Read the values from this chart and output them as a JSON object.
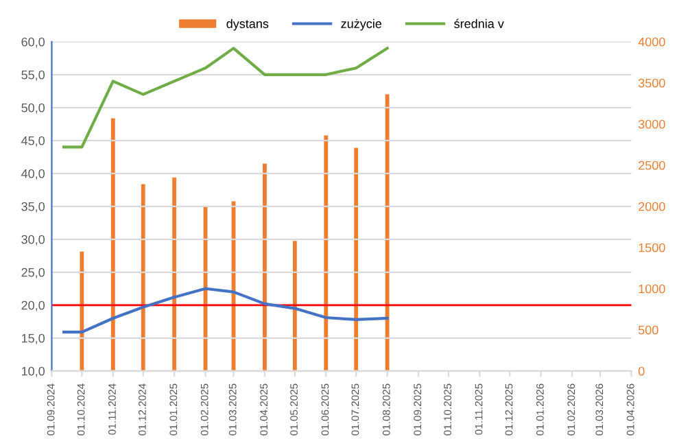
{
  "chart_data": {
    "type": "line",
    "xlim": [
      "2024-09-01",
      "2026-04-01"
    ],
    "xticks": [
      {
        "value": "2024-09-01",
        "label": "01.09.2024"
      },
      {
        "value": "2024-10-01",
        "label": "01.10.2024"
      },
      {
        "value": "2024-11-01",
        "label": "01.11.2024"
      },
      {
        "value": "2024-12-01",
        "label": "01.12.2024"
      },
      {
        "value": "2025-01-01",
        "label": "01.01.2025"
      },
      {
        "value": "2025-02-01",
        "label": "01.02.2025"
      },
      {
        "value": "2025-03-01",
        "label": "01.03.2025"
      },
      {
        "value": "2025-04-01",
        "label": "01.04.2025"
      },
      {
        "value": "2025-05-01",
        "label": "01.05.2025"
      },
      {
        "value": "2025-06-01",
        "label": "01.06.2025"
      },
      {
        "value": "2025-07-01",
        "label": "01.07.2025"
      },
      {
        "value": "2025-08-01",
        "label": "01.08.2025"
      },
      {
        "value": "2025-09-01",
        "label": "01.09.2025"
      },
      {
        "value": "2025-10-01",
        "label": "01.10.2025"
      },
      {
        "value": "2025-11-01",
        "label": "01.11.2025"
      },
      {
        "value": "2025-12-01",
        "label": "01.12.2025"
      },
      {
        "value": "2026-01-01",
        "label": "01.01.2026"
      },
      {
        "value": "2026-02-01",
        "label": "01.02.2026"
      },
      {
        "value": "2026-03-01",
        "label": "01.03.2026"
      },
      {
        "value": "2026-04-01",
        "label": "01.04.2026"
      }
    ],
    "ylim": [
      10,
      60
    ],
    "yticks": [
      {
        "value": 10,
        "label": "10,0"
      },
      {
        "value": 15,
        "label": "15,0"
      },
      {
        "value": 20,
        "label": "20,0"
      },
      {
        "value": 25,
        "label": "25,0"
      },
      {
        "value": 30,
        "label": "30,0"
      },
      {
        "value": 35,
        "label": "35,0"
      },
      {
        "value": 40,
        "label": "40,0"
      },
      {
        "value": 45,
        "label": "45,0"
      },
      {
        "value": 50,
        "label": "50,0"
      },
      {
        "value": 55,
        "label": "55,0"
      },
      {
        "value": 60,
        "label": "60,0"
      }
    ],
    "y2lim": [
      0,
      4000
    ],
    "y2ticks": [
      0,
      500,
      1000,
      1500,
      2000,
      2500,
      3000,
      3500,
      4000
    ],
    "grid": "y",
    "legend": "top",
    "marker": "none",
    "series": [
      {
        "name": "dystans",
        "type": "bar",
        "axis": "y2",
        "color": "#ed7d31",
        "x": [
          "2024-10-01",
          "2024-11-01",
          "2024-12-01",
          "2025-01-01",
          "2025-02-01",
          "2025-03-01",
          "2025-04-01",
          "2025-05-01",
          "2025-06-01",
          "2025-07-01",
          "2025-08-01"
        ],
        "values": [
          1450,
          3070,
          2270,
          2350,
          1990,
          2060,
          2520,
          1580,
          2860,
          2710,
          3360
        ]
      },
      {
        "name": "zużycie",
        "color": "#4472c4",
        "x": [
          "2024-09-13",
          "2024-10-01",
          "2024-11-01",
          "2024-12-01",
          "2025-01-01",
          "2025-02-01",
          "2025-03-01",
          "2025-04-01",
          "2025-05-01",
          "2025-06-01",
          "2025-07-01",
          "2025-08-01"
        ],
        "values": [
          15.9,
          15.9,
          18.0,
          19.7,
          21.2,
          22.5,
          22.0,
          20.2,
          19.5,
          18.1,
          17.8,
          18.0
        ]
      },
      {
        "name": "średnia v",
        "color": "#70ad47",
        "x": [
          "2024-09-13",
          "2024-10-01",
          "2024-11-01",
          "2024-12-01",
          "2025-01-01",
          "2025-02-01",
          "2025-03-01",
          "2025-04-01",
          "2025-05-01",
          "2025-06-01",
          "2025-07-01",
          "2025-08-01"
        ],
        "values": [
          44,
          44,
          54,
          52,
          54,
          56,
          59,
          55,
          55,
          55,
          56,
          59
        ]
      }
    ],
    "ref_lines": [
      {
        "axis": "y",
        "value": 20,
        "color": "#ff0000"
      }
    ]
  }
}
